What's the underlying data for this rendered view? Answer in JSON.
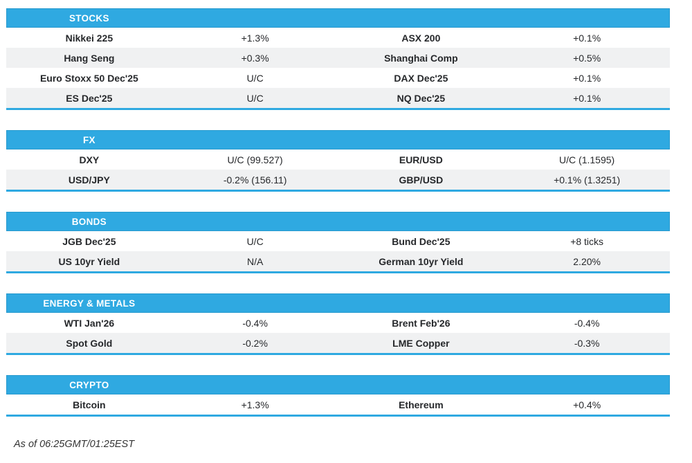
{
  "colors": {
    "accent": "#2FA9E1",
    "row_alt": "#F0F1F2",
    "header_text": "#FFFFFF",
    "text": "#26282B"
  },
  "chart_data": [
    {
      "type": "table",
      "title": "STOCKS",
      "rows": [
        [
          "Nikkei 225",
          "+1.3%",
          "ASX 200",
          "+0.1%"
        ],
        [
          "Hang Seng",
          "+0.3%",
          "Shanghai Comp",
          "+0.5%"
        ],
        [
          "Euro Stoxx 50 Dec'25",
          "U/C",
          "DAX Dec'25",
          "+0.1%"
        ],
        [
          "ES Dec'25",
          "U/C",
          "NQ Dec'25",
          "+0.1%"
        ]
      ]
    },
    {
      "type": "table",
      "title": "FX",
      "rows": [
        [
          "DXY",
          "U/C (99.527)",
          "EUR/USD",
          "U/C (1.1595)"
        ],
        [
          "USD/JPY",
          "-0.2% (156.11)",
          "GBP/USD",
          "+0.1% (1.3251)"
        ]
      ]
    },
    {
      "type": "table",
      "title": "BONDS",
      "rows": [
        [
          "JGB Dec'25",
          "U/C",
          "Bund Dec'25",
          "+8 ticks"
        ],
        [
          "US 10yr Yield",
          "N/A",
          "German 10yr Yield",
          "2.20%"
        ]
      ]
    },
    {
      "type": "table",
      "title": "ENERGY & METALS",
      "rows": [
        [
          "WTI Jan'26",
          "-0.4%",
          "Brent Feb'26",
          "-0.4%"
        ],
        [
          "Spot Gold",
          "-0.2%",
          "LME Copper",
          "-0.3%"
        ]
      ]
    },
    {
      "type": "table",
      "title": "CRYPTO",
      "rows": [
        [
          "Bitcoin",
          "+1.3%",
          "Ethereum",
          "+0.4%"
        ]
      ]
    }
  ],
  "footer": {
    "as_of": "As of 06:25GMT/01:25EST"
  }
}
